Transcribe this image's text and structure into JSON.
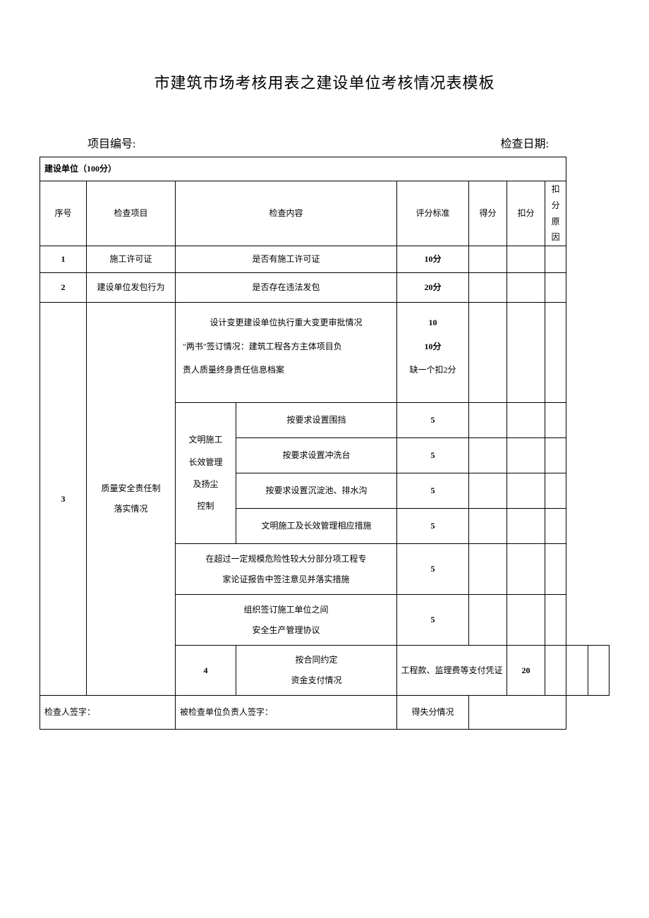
{
  "doc": {
    "title": "市建筑市场考核用表之建设单位考核情况表模板",
    "project_no_label": "项目编号:",
    "check_date_label": "检查日期:",
    "band": "建设单位（100分）",
    "header": {
      "seq": "序号",
      "item": "检查项目",
      "content": "检查内容",
      "standard": "评分标准",
      "score": "得分",
      "deduct": "扣分",
      "reason": "扣分原因"
    },
    "rows": {
      "r1": {
        "seq": "1",
        "item": "施工许可证",
        "content": "是否有施工许可证",
        "std": "10分"
      },
      "r2": {
        "seq": "2",
        "item": "建设单位发包行为",
        "content": "是否存在违法发包",
        "std": "20分"
      },
      "r3": {
        "seq": "3",
        "item_l1": "质量安全责任制",
        "item_l2": "落实情况",
        "g1_line1": "设计变更建设单位执行重大变更审批情况",
        "g1_line2": "\"两书\"签订情况：建筑工程各方主体项目负",
        "g1_line3": "责人质量终身责任信息档案",
        "g1_std_l1": "10",
        "g1_std_l2": "10分",
        "g1_std_l3": "缺一个扣2分",
        "sub_label_l1": "文明施工",
        "sub_label_l2": "长效管理",
        "sub_label_l3": "及扬尘",
        "sub_label_l4": "控制",
        "sub1": "按要求设置围挡",
        "sub1_std": "5",
        "sub2": "按要求设置冲洗台",
        "sub2_std": "5",
        "sub3": "按要求设置沉淀池、排水沟",
        "sub3_std": "5",
        "sub4": "文明施工及长效管理相应措施",
        "sub4_std": "5",
        "g3_l1": "在超过一定规模危险性较大分部分项工程专",
        "g3_l2": "家论证报告中签注意见并落实措施",
        "g3_std": "5",
        "g4_l1": "组织签订施工单位之间",
        "g4_l2": "安全生产管理协议",
        "g4_std": "5"
      },
      "r4": {
        "seq": "4",
        "item_l1": "按合同约定",
        "item_l2": "资金支付情况",
        "content": "工程款、监理费等支付凭证",
        "std": "20"
      }
    },
    "footer": {
      "inspector": "检查人签字：",
      "checked_unit": "被检查单位负责人签字：",
      "summary": "得失分情况"
    }
  },
  "style": {
    "page_bg": "#ffffff",
    "border_color": "#000000",
    "text_color": "#000000",
    "title_fontsize": 22,
    "body_fontsize": 12,
    "header_fontsize": 16
  }
}
